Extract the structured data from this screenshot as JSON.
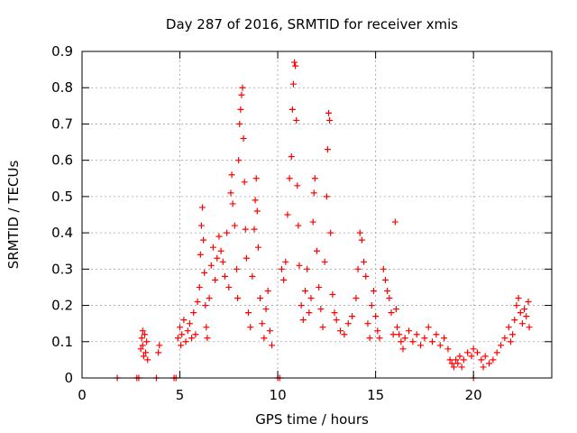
{
  "chart_data": {
    "type": "scatter",
    "title": "Day 287 of 2016, SRMTID for receiver xmis",
    "xlabel": "GPS time / hours",
    "ylabel": "SRMTID / TECUs",
    "xlim": [
      0,
      24
    ],
    "ylim": [
      0,
      0.9
    ],
    "xticks": [
      0,
      5,
      10,
      15,
      20
    ],
    "yticks": [
      0,
      0.1,
      0.2,
      0.3,
      0.4,
      0.5,
      0.6,
      0.7,
      0.8,
      0.9
    ],
    "grid": true,
    "marker": "+",
    "series": [
      {
        "name": "SRMTID",
        "color": "#ff0000",
        "points": [
          [
            1.8,
            0
          ],
          [
            2.8,
            0
          ],
          [
            2.9,
            0
          ],
          [
            3.8,
            0
          ],
          [
            4.7,
            0
          ],
          [
            4.8,
            0
          ],
          [
            10.0,
            0
          ],
          [
            10.1,
            0
          ],
          [
            20.0,
            0
          ],
          [
            3.0,
            0.08
          ],
          [
            3.05,
            0.11
          ],
          [
            3.1,
            0.09
          ],
          [
            3.15,
            0.06
          ],
          [
            3.2,
            0.12
          ],
          [
            3.25,
            0.07
          ],
          [
            3.3,
            0.1
          ],
          [
            3.35,
            0.05
          ],
          [
            3.1,
            0.13
          ],
          [
            3.9,
            0.07
          ],
          [
            3.95,
            0.09
          ],
          [
            4.9,
            0.11
          ],
          [
            5.0,
            0.14
          ],
          [
            5.05,
            0.09
          ],
          [
            5.1,
            0.12
          ],
          [
            5.2,
            0.16
          ],
          [
            5.3,
            0.1
          ],
          [
            5.4,
            0.13
          ],
          [
            5.5,
            0.15
          ],
          [
            5.6,
            0.11
          ],
          [
            5.7,
            0.18
          ],
          [
            5.8,
            0.12
          ],
          [
            5.9,
            0.21
          ],
          [
            6.0,
            0.25
          ],
          [
            6.05,
            0.34
          ],
          [
            6.1,
            0.42
          ],
          [
            6.15,
            0.47
          ],
          [
            6.2,
            0.38
          ],
          [
            6.25,
            0.29
          ],
          [
            6.3,
            0.2
          ],
          [
            6.35,
            0.14
          ],
          [
            6.4,
            0.11
          ],
          [
            6.5,
            0.22
          ],
          [
            6.6,
            0.31
          ],
          [
            6.7,
            0.36
          ],
          [
            6.8,
            0.27
          ],
          [
            6.9,
            0.33
          ],
          [
            7.0,
            0.39
          ],
          [
            7.1,
            0.35
          ],
          [
            7.2,
            0.32
          ],
          [
            7.3,
            0.28
          ],
          [
            7.4,
            0.4
          ],
          [
            7.5,
            0.25
          ],
          [
            7.6,
            0.51
          ],
          [
            7.65,
            0.56
          ],
          [
            7.7,
            0.48
          ],
          [
            7.8,
            0.42
          ],
          [
            7.9,
            0.3
          ],
          [
            7.95,
            0.22
          ],
          [
            8.0,
            0.6
          ],
          [
            8.05,
            0.7
          ],
          [
            8.1,
            0.74
          ],
          [
            8.15,
            0.78
          ],
          [
            8.2,
            0.8
          ],
          [
            8.25,
            0.66
          ],
          [
            8.3,
            0.54
          ],
          [
            8.35,
            0.41
          ],
          [
            8.4,
            0.33
          ],
          [
            8.5,
            0.18
          ],
          [
            8.6,
            0.14
          ],
          [
            8.7,
            0.28
          ],
          [
            8.8,
            0.41
          ],
          [
            8.85,
            0.49
          ],
          [
            8.9,
            0.55
          ],
          [
            8.95,
            0.46
          ],
          [
            9.0,
            0.36
          ],
          [
            9.1,
            0.22
          ],
          [
            9.2,
            0.15
          ],
          [
            9.3,
            0.11
          ],
          [
            9.4,
            0.19
          ],
          [
            9.5,
            0.24
          ],
          [
            9.6,
            0.13
          ],
          [
            9.7,
            0.09
          ],
          [
            10.2,
            0.3
          ],
          [
            10.3,
            0.27
          ],
          [
            10.4,
            0.32
          ],
          [
            10.5,
            0.45
          ],
          [
            10.6,
            0.55
          ],
          [
            10.7,
            0.61
          ],
          [
            10.75,
            0.74
          ],
          [
            10.8,
            0.81
          ],
          [
            10.85,
            0.87
          ],
          [
            10.9,
            0.86
          ],
          [
            10.95,
            0.71
          ],
          [
            11.0,
            0.53
          ],
          [
            11.05,
            0.42
          ],
          [
            11.1,
            0.31
          ],
          [
            11.2,
            0.2
          ],
          [
            11.3,
            0.16
          ],
          [
            11.4,
            0.24
          ],
          [
            11.5,
            0.3
          ],
          [
            11.6,
            0.18
          ],
          [
            11.7,
            0.22
          ],
          [
            11.8,
            0.43
          ],
          [
            11.85,
            0.51
          ],
          [
            11.9,
            0.55
          ],
          [
            12.0,
            0.35
          ],
          [
            12.1,
            0.25
          ],
          [
            12.2,
            0.19
          ],
          [
            12.3,
            0.14
          ],
          [
            12.4,
            0.32
          ],
          [
            12.5,
            0.5
          ],
          [
            12.55,
            0.63
          ],
          [
            12.6,
            0.73
          ],
          [
            12.65,
            0.71
          ],
          [
            12.7,
            0.4
          ],
          [
            12.8,
            0.23
          ],
          [
            12.9,
            0.18
          ],
          [
            13.0,
            0.16
          ],
          [
            13.2,
            0.13
          ],
          [
            13.4,
            0.12
          ],
          [
            13.6,
            0.15
          ],
          [
            13.8,
            0.17
          ],
          [
            14.0,
            0.22
          ],
          [
            14.1,
            0.3
          ],
          [
            14.2,
            0.4
          ],
          [
            14.3,
            0.38
          ],
          [
            14.4,
            0.32
          ],
          [
            14.5,
            0.28
          ],
          [
            14.6,
            0.15
          ],
          [
            14.7,
            0.11
          ],
          [
            14.8,
            0.2
          ],
          [
            14.9,
            0.24
          ],
          [
            15.0,
            0.17
          ],
          [
            15.1,
            0.13
          ],
          [
            15.2,
            0.11
          ],
          [
            15.4,
            0.3
          ],
          [
            15.5,
            0.27
          ],
          [
            15.6,
            0.24
          ],
          [
            15.7,
            0.22
          ],
          [
            15.8,
            0.18
          ],
          [
            15.9,
            0.12
          ],
          [
            16.0,
            0.43
          ],
          [
            16.05,
            0.19
          ],
          [
            16.1,
            0.14
          ],
          [
            16.2,
            0.12
          ],
          [
            16.3,
            0.1
          ],
          [
            16.4,
            0.08
          ],
          [
            16.5,
            0.11
          ],
          [
            16.7,
            0.13
          ],
          [
            16.9,
            0.1
          ],
          [
            17.1,
            0.12
          ],
          [
            17.3,
            0.09
          ],
          [
            17.5,
            0.11
          ],
          [
            17.7,
            0.14
          ],
          [
            17.9,
            0.1
          ],
          [
            18.1,
            0.12
          ],
          [
            18.3,
            0.09
          ],
          [
            18.5,
            0.11
          ],
          [
            18.7,
            0.08
          ],
          [
            18.8,
            0.05
          ],
          [
            18.9,
            0.04
          ],
          [
            19.0,
            0.03
          ],
          [
            19.1,
            0.05
          ],
          [
            19.2,
            0.04
          ],
          [
            19.3,
            0.06
          ],
          [
            19.4,
            0.03
          ],
          [
            19.5,
            0.05
          ],
          [
            19.7,
            0.07
          ],
          [
            19.9,
            0.06
          ],
          [
            20.0,
            0.08
          ],
          [
            20.2,
            0.07
          ],
          [
            20.4,
            0.05
          ],
          [
            20.5,
            0.03
          ],
          [
            20.6,
            0.06
          ],
          [
            20.8,
            0.04
          ],
          [
            21.0,
            0.05
          ],
          [
            21.2,
            0.07
          ],
          [
            21.4,
            0.09
          ],
          [
            21.6,
            0.11
          ],
          [
            21.8,
            0.14
          ],
          [
            21.9,
            0.1
          ],
          [
            22.0,
            0.12
          ],
          [
            22.1,
            0.16
          ],
          [
            22.2,
            0.2
          ],
          [
            22.3,
            0.22
          ],
          [
            22.4,
            0.18
          ],
          [
            22.5,
            0.15
          ],
          [
            22.6,
            0.19
          ],
          [
            22.7,
            0.17
          ],
          [
            22.8,
            0.21
          ],
          [
            22.85,
            0.14
          ]
        ]
      }
    ]
  }
}
